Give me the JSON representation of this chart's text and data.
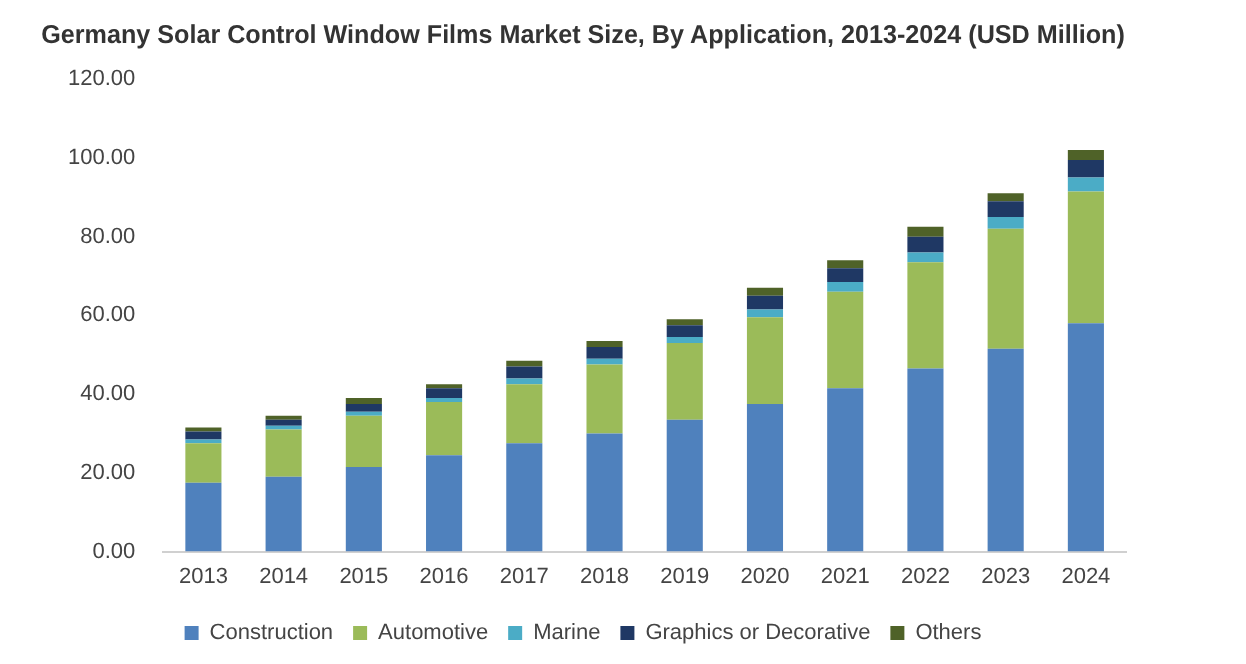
{
  "chart_data": {
    "type": "bar",
    "stacked": true,
    "title": "Germany Solar Control Window Films Market Size, By Application, 2013-2024 (USD Million)",
    "categories": [
      "2013",
      "2014",
      "2015",
      "2016",
      "2017",
      "2018",
      "2019",
      "2020",
      "2021",
      "2022",
      "2023",
      "2024"
    ],
    "series": [
      {
        "name": "Construction",
        "color": "#4f81bd",
        "values": [
          17.5,
          19,
          21.5,
          24.5,
          27.5,
          30,
          33.5,
          37.5,
          41.5,
          46.5,
          51.5,
          58
        ]
      },
      {
        "name": "Automotive",
        "color": "#9bbb59",
        "values": [
          10,
          12,
          13,
          13.5,
          15,
          17.5,
          19.5,
          22,
          24.5,
          27,
          30.5,
          33.5
        ]
      },
      {
        "name": "Marine",
        "color": "#4bacc6",
        "values": [
          1,
          1,
          1,
          1,
          1.5,
          1.5,
          1.5,
          2,
          2.5,
          2.5,
          3,
          3.5
        ]
      },
      {
        "name": "Graphics or Decorative",
        "color": "#1f3864",
        "values": [
          2,
          1.5,
          2,
          2.5,
          3,
          3,
          3,
          3.5,
          3.5,
          4,
          4,
          4.5
        ]
      },
      {
        "name": "Others",
        "color": "#4f6228",
        "values": [
          1,
          1,
          1.5,
          1,
          1.5,
          1.5,
          1.5,
          2,
          2,
          2.5,
          2,
          2.5
        ]
      }
    ],
    "ylim": [
      0,
      120
    ],
    "yticks": [
      {
        "value": 0,
        "label": "0.00"
      },
      {
        "value": 20,
        "label": "20.00"
      },
      {
        "value": 40,
        "label": "40.00"
      },
      {
        "value": 60,
        "label": "60.00"
      },
      {
        "value": 80,
        "label": "80.00"
      },
      {
        "value": 100,
        "label": "100.00"
      },
      {
        "value": 120,
        "label": "120.00"
      }
    ],
    "grid": false,
    "legend": "bottom"
  }
}
